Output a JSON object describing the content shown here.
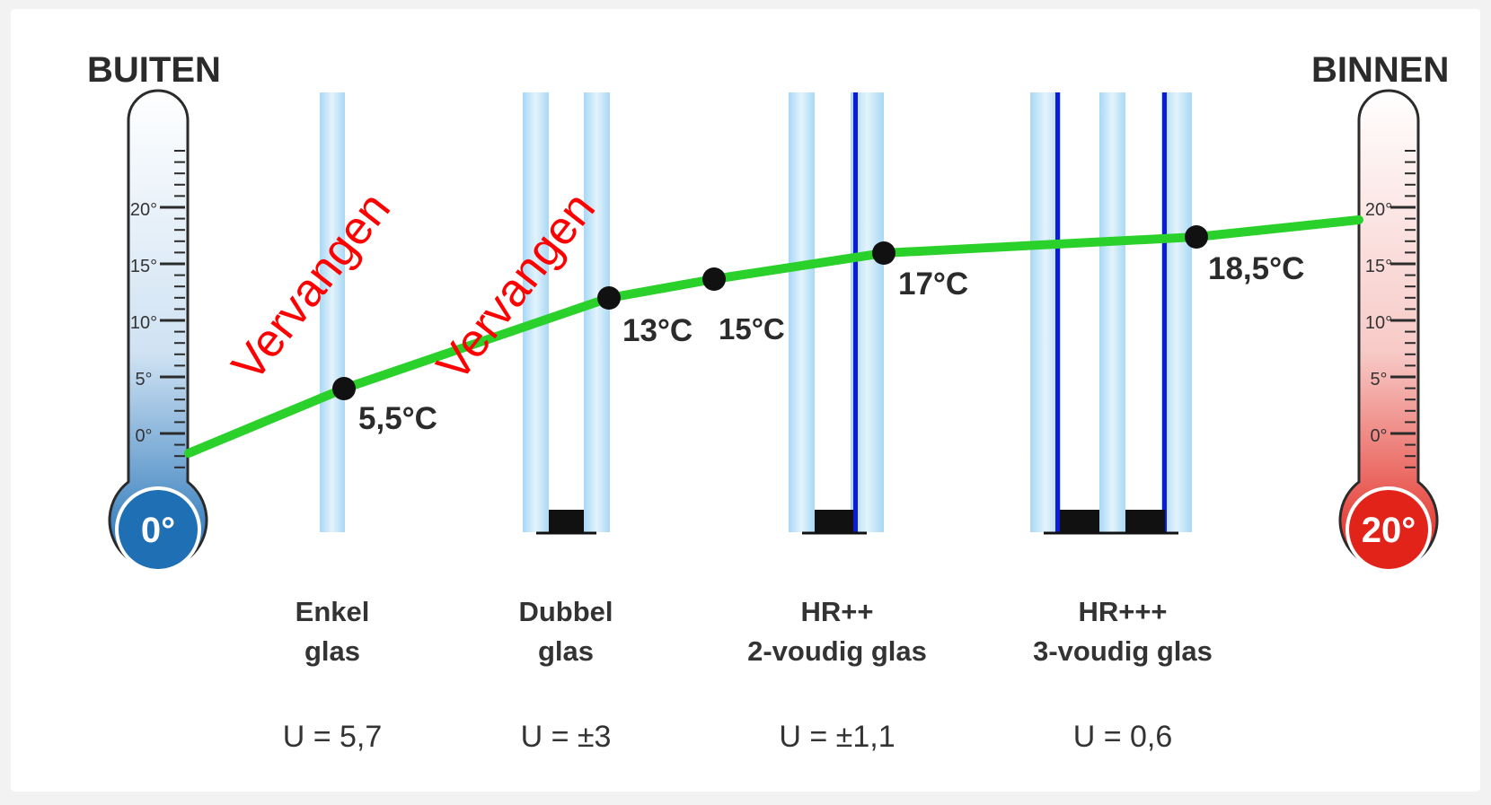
{
  "headers": {
    "outside": "BUITEN",
    "inside": "BINNEN"
  },
  "thermometers": {
    "outside": {
      "reading": "0°",
      "color": "#1f6fb5",
      "ticks": [
        "20°",
        "15°",
        "10°",
        "5°",
        "0°"
      ]
    },
    "inside": {
      "reading": "20°",
      "color": "#e2231a",
      "ticks": [
        "20°",
        "15°",
        "10°",
        "5°",
        "0°"
      ]
    }
  },
  "glass_types": [
    {
      "line1": "Enkel",
      "line2": "glas",
      "u_value": "U = 5,7"
    },
    {
      "line1": "Dubbel",
      "line2": "glas",
      "u_value": "U = ±3"
    },
    {
      "line1": "HR++",
      "line2": "2-voudig glas",
      "u_value": "U = ±1,1"
    },
    {
      "line1": "HR+++",
      "line2": "3-voudig glas",
      "u_value": "U = 0,6"
    }
  ],
  "temperature_points": [
    "5,5°C",
    "13°C",
    "15°C",
    "17°C",
    "18,5°C"
  ],
  "annotations": [
    "Vervangen",
    "Vervangen"
  ],
  "colors": {
    "curve": "#2bd12b",
    "coating": "#0b1bd6",
    "glass": "#bfe3f7",
    "annotation": "#ff0000"
  }
}
